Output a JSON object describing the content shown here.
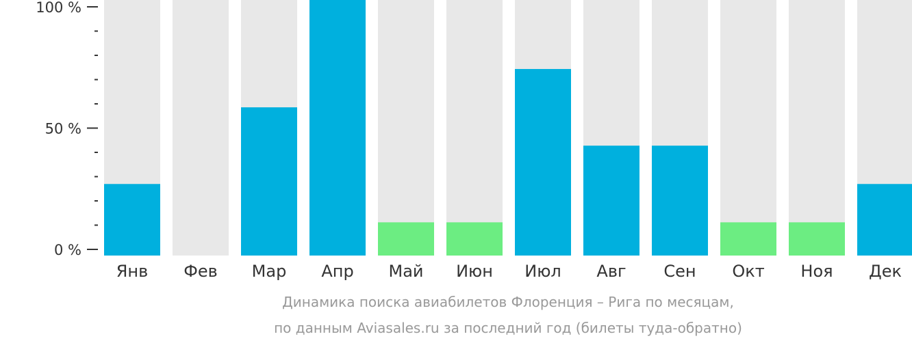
{
  "chart_data": {
    "type": "bar",
    "categories": [
      "Янв",
      "Фев",
      "Мар",
      "Апр",
      "Май",
      "Июн",
      "Июл",
      "Авг",
      "Сен",
      "Окт",
      "Ноя",
      "Дек"
    ],
    "values": [
      28,
      0,
      58,
      100,
      13,
      13,
      73,
      43,
      43,
      13,
      13,
      28
    ],
    "highlight": [
      false,
      false,
      false,
      false,
      true,
      true,
      false,
      false,
      false,
      true,
      true,
      false
    ],
    "ylim": [
      0,
      100
    ],
    "y_ticks": [
      {
        "value": 0,
        "label": "0 %"
      },
      {
        "value": 50,
        "label": "50 %"
      },
      {
        "value": 100,
        "label": "100 %"
      }
    ],
    "minor_tick_step": 10,
    "colors": {
      "bar": "#00b0de",
      "highlight": "#6ced82",
      "background_bar": "#e8e8e8",
      "axis": "#333333"
    },
    "grid": false,
    "legend": "none"
  },
  "caption": {
    "line1": "Динамика поиска авиабилетов Флоренция – Рига по месяцам,",
    "line2": "по данным Aviasales.ru за последний год (билеты туда-обратно)"
  }
}
